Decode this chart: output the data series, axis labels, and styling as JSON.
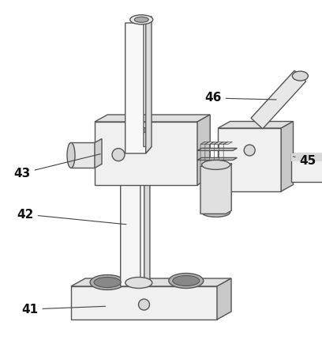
{
  "background_color": "#ffffff",
  "line_color": "#555555",
  "lw": 1.0,
  "figsize": [
    4.08,
    4.59
  ],
  "dpi": 100,
  "label_fontsize": 11,
  "colors": {
    "face_front": "#f0f0f0",
    "face_top": "#e0e0e0",
    "face_right": "#c8c8c8",
    "tube_front": "#f5f5f5",
    "tube_right": "#d8d8d8",
    "hole_fill": "#b0b0b0",
    "hole_inner": "#888888"
  }
}
